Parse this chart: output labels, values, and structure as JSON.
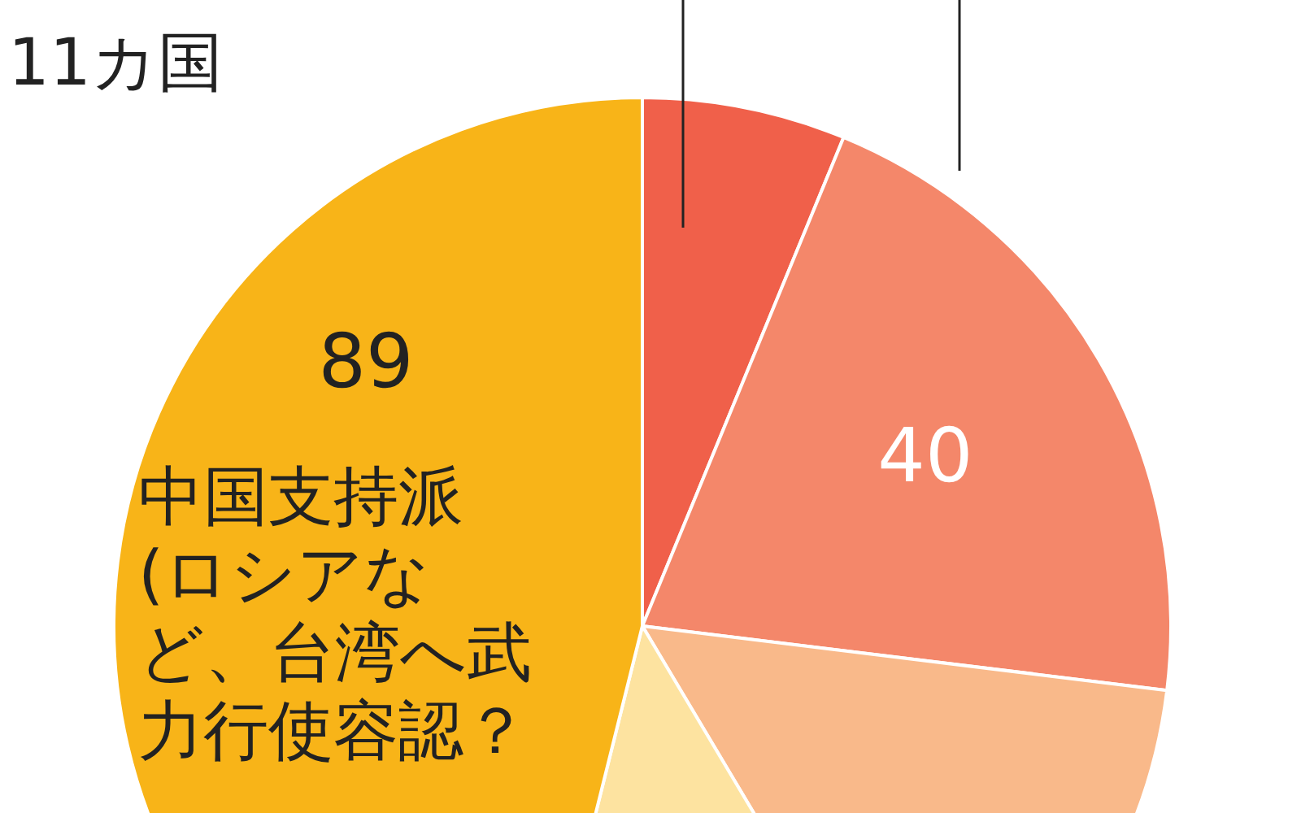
{
  "chart_data": {
    "type": "pie",
    "categories": [
      null,
      null,
      null,
      null,
      "中国支持派(ロシアなど、台湾へ武力行使容認？"
    ],
    "values": [
      12,
      40,
      28,
      24,
      89
    ],
    "colors": [
      "#f0604a",
      "#f4876a",
      "#f9b98a",
      "#fde3a0",
      "#f8b418"
    ],
    "value_labels": [
      null,
      "40",
      null,
      null,
      "89"
    ],
    "annotations": [
      "11カ国"
    ]
  }
}
